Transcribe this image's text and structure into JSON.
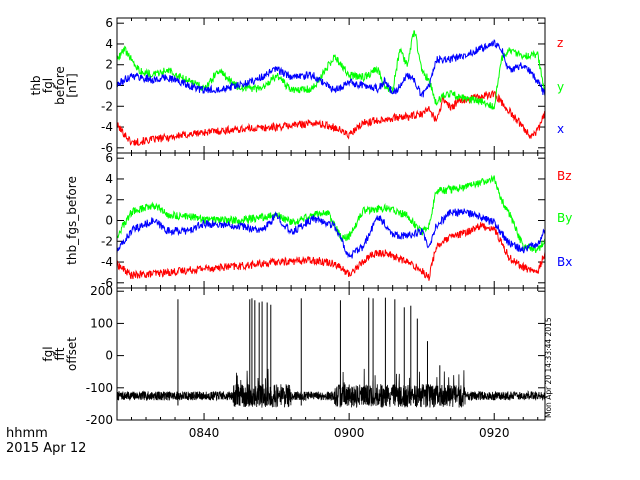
{
  "chart_data": [
    {
      "type": "line",
      "ylabel": [
        "thb",
        "fgl",
        "before",
        "[nT]"
      ],
      "ylim": [
        -6.5,
        6.5
      ],
      "yticks": [
        -6,
        -4,
        -2,
        0,
        2,
        4,
        6
      ],
      "xlim": [
        28,
        87
      ],
      "series": [
        {
          "name": "z",
          "color": "#ff0000",
          "x": [
            28,
            30,
            35,
            40,
            45,
            50,
            55,
            58,
            60,
            62,
            65,
            68,
            70,
            71,
            72,
            73,
            74,
            75,
            77,
            80,
            83,
            85,
            86,
            87
          ],
          "y": [
            -3.8,
            -5.5,
            -5.0,
            -4.5,
            -4.2,
            -4.0,
            -3.6,
            -4.0,
            -4.8,
            -3.6,
            -3.2,
            -3.0,
            -2.8,
            -2.2,
            -3.4,
            -1.2,
            -2.2,
            -1.6,
            -1.2,
            -0.8,
            -3.2,
            -4.8,
            -4.4,
            -2.6
          ]
        },
        {
          "name": "y",
          "color": "#00ff00",
          "x": [
            28,
            29,
            31,
            33,
            35,
            38,
            40,
            42,
            45,
            48,
            50,
            52,
            55,
            58,
            60,
            62,
            64,
            65,
            66,
            67,
            68,
            69,
            70,
            71,
            72,
            73,
            74,
            76,
            78,
            80,
            81,
            82,
            84,
            86,
            87
          ],
          "y": [
            2.5,
            3.5,
            1.5,
            1.0,
            1.5,
            0.5,
            -0.3,
            1.4,
            -0.3,
            -0.3,
            1.0,
            -0.5,
            -0.3,
            2.8,
            1.0,
            0.8,
            1.6,
            -0.2,
            -0.4,
            3.4,
            2.0,
            5.4,
            1.5,
            0.5,
            -1.7,
            -1.0,
            -0.8,
            -1.3,
            -1.5,
            -2.0,
            2.5,
            3.5,
            2.8,
            3.0,
            -1.0
          ]
        },
        {
          "name": "x",
          "color": "#0000ff",
          "x": [
            28,
            30,
            33,
            35,
            38,
            40,
            45,
            48,
            50,
            52,
            55,
            58,
            60,
            62,
            64,
            65,
            66,
            67,
            68,
            69,
            70,
            71,
            72,
            74,
            76,
            78,
            80,
            81,
            82,
            84,
            86,
            87
          ],
          "y": [
            0.0,
            1.0,
            0.5,
            0.8,
            0.0,
            -0.5,
            0.0,
            0.8,
            1.6,
            0.8,
            1.0,
            -0.5,
            0.3,
            0.0,
            -0.3,
            0.5,
            -0.8,
            0.0,
            1.0,
            0.5,
            -1.0,
            0.0,
            2.5,
            2.5,
            3.0,
            3.5,
            4.0,
            3.5,
            1.5,
            2.0,
            0.5,
            -1.0
          ]
        }
      ]
    },
    {
      "type": "line",
      "ylabel": [
        "thb_fgs_before"
      ],
      "ylim": [
        -6.5,
        6.5
      ],
      "yticks": [
        -6,
        -4,
        -2,
        0,
        2,
        4,
        6
      ],
      "xlim": [
        28,
        87
      ],
      "series": [
        {
          "name": "Bz",
          "color": "#ff0000",
          "x": [
            28,
            30,
            35,
            40,
            45,
            50,
            55,
            58,
            60,
            63,
            65,
            68,
            70,
            71,
            72,
            74,
            76,
            78,
            80,
            82,
            84,
            86,
            87
          ],
          "y": [
            -4.2,
            -5.3,
            -5.0,
            -4.6,
            -4.4,
            -4.0,
            -3.8,
            -4.1,
            -5.2,
            -3.3,
            -3.1,
            -4.0,
            -4.8,
            -5.5,
            -2.5,
            -1.6,
            -1.2,
            -0.5,
            -0.8,
            -3.5,
            -4.5,
            -5.0,
            -3.0
          ]
        },
        {
          "name": "By",
          "color": "#00ff00",
          "x": [
            28,
            30,
            33,
            35,
            38,
            40,
            45,
            48,
            50,
            52,
            55,
            57,
            59,
            60,
            62,
            65,
            68,
            70,
            71,
            72,
            74,
            76,
            78,
            80,
            81,
            82,
            84,
            86,
            87
          ],
          "y": [
            -1.5,
            0.8,
            1.5,
            0.5,
            0.4,
            0.1,
            0.0,
            0.3,
            0.6,
            -0.2,
            0.5,
            0.8,
            -1.8,
            -1.5,
            1.0,
            1.2,
            0.5,
            -1.2,
            -0.5,
            2.8,
            3.0,
            3.2,
            3.6,
            4.0,
            2.0,
            0.8,
            -2.5,
            -2.8,
            -2.0
          ]
        },
        {
          "name": "Bx",
          "color": "#0000ff",
          "x": [
            28,
            30,
            33,
            35,
            38,
            40,
            45,
            48,
            50,
            52,
            55,
            58,
            60,
            62,
            64,
            66,
            68,
            70,
            71,
            72,
            74,
            76,
            78,
            80,
            82,
            84,
            86,
            87
          ],
          "y": [
            -3.0,
            -1.0,
            0.0,
            -1.0,
            -1.0,
            -0.3,
            -0.5,
            -1.0,
            0.5,
            -1.2,
            0.2,
            -0.5,
            -3.5,
            -2.5,
            0.5,
            -1.3,
            -1.5,
            -1.0,
            -2.8,
            -0.5,
            0.8,
            0.8,
            0.3,
            -0.2,
            -2.2,
            -2.8,
            -2.2,
            -1.0
          ]
        }
      ]
    },
    {
      "type": "line",
      "ylabel": [
        "fgl",
        "fft",
        "offset"
      ],
      "ylim": [
        -200,
        210
      ],
      "yticks": [
        -200,
        -100,
        0,
        100,
        200
      ],
      "xlim": [
        28,
        87
      ],
      "baseline": -125,
      "noise": 14,
      "seed": 7,
      "busy_ranges": [
        [
          44,
          52
        ],
        [
          58,
          76
        ]
      ],
      "spikes": [
        {
          "x": 36.4,
          "y": 175
        },
        {
          "x": 46.3,
          "y": 175
        },
        {
          "x": 46.6,
          "y": 178
        },
        {
          "x": 47.0,
          "y": 172
        },
        {
          "x": 47.6,
          "y": 165
        },
        {
          "x": 48.0,
          "y": 168
        },
        {
          "x": 48.7,
          "y": 165
        },
        {
          "x": 49.2,
          "y": 158
        },
        {
          "x": 53.4,
          "y": 178
        },
        {
          "x": 58.8,
          "y": 172
        },
        {
          "x": 62.7,
          "y": 180
        },
        {
          "x": 63.3,
          "y": 178
        },
        {
          "x": 65.0,
          "y": 180
        },
        {
          "x": 66.3,
          "y": 175
        },
        {
          "x": 67.6,
          "y": 150
        },
        {
          "x": 68.5,
          "y": 155
        },
        {
          "x": 69.4,
          "y": 115
        },
        {
          "x": 70.8,
          "y": 45
        },
        {
          "x": 72.5,
          "y": -30
        }
      ],
      "series": [
        {
          "color": "#000000"
        }
      ]
    }
  ],
  "x_axis": {
    "ticks": [
      {
        "x": 40,
        "label": "0840"
      },
      {
        "x": 60,
        "label": "0900"
      },
      {
        "x": 80,
        "label": "0920"
      }
    ],
    "minor_step": 2
  },
  "footer": {
    "time_label": "hhmm",
    "date_label": "2015 Apr 12",
    "stamp": "Mon Apr 20 14:33:44 2015"
  }
}
